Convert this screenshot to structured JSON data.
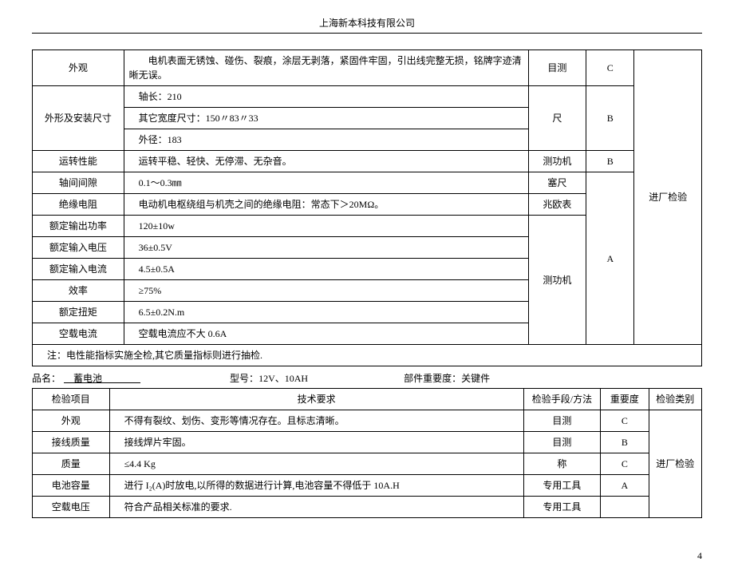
{
  "header": {
    "company": "上海新本科技有限公司"
  },
  "table1": {
    "col5_label": "进厂检验",
    "rows": [
      {
        "item": "外观",
        "req": "  电机表面无锈蚀、碰伤、裂痕，涂层无剥落，紧固件牢固，引出线完整无损，铭牌字迹清晰无误。",
        "method": "目测",
        "grade": "C"
      },
      {
        "item": "外形及安装尺寸",
        "req_a": " 轴长：210",
        "req_b": " 其它宽度尺寸：150〃83〃33",
        "req_c": " 外径：183",
        "method": "尺",
        "grade": "B"
      },
      {
        "item": "运转性能",
        "req": " 运转平稳、轻快、无停滞、无杂音。",
        "method": "测功机",
        "grade": "B"
      },
      {
        "item": "轴间间隙",
        "req": " 0.1～0.3㎜",
        "method": "塞尺",
        "grade_group": "A"
      },
      {
        "item": "绝缘电阻",
        "req": " 电动机电枢绕组与机壳之间的绝缘电阻：常态下＞20MΩ。",
        "method": "兆欧表"
      },
      {
        "item": "额定输出功率",
        "req": " 120±10w",
        "method_group": "测功机"
      },
      {
        "item": "额定输入电压",
        "req": " 36±0.5V"
      },
      {
        "item": "额定输入电流",
        "req": " 4.5±0.5A"
      },
      {
        "item": "效率",
        "req": " ≥75%"
      },
      {
        "item": "额定扭矩",
        "req": " 6.5±0.2N.m"
      },
      {
        "item": "空载电流",
        "req": " 空载电流应不大 0.6A"
      }
    ],
    "note": " 注：电性能指标实施全检,其它质量指标则进行抽检."
  },
  "product": {
    "name_label": "品名：",
    "name_value": " 蓄电池    ",
    "model_label": "型号：",
    "model_value": "12V、10AH",
    "importance_label": "部件重要度：关键件"
  },
  "table2": {
    "header": {
      "c1": "检验项目",
      "c2": "技术要求",
      "c3": "检验手段/方法",
      "c4": "重要度",
      "c5": "检验类别"
    },
    "col5_label": "进厂检验",
    "rows": [
      {
        "item": "外观",
        "req": " 不得有裂纹、划伤、变形等情况存在。且标志清晰。",
        "method": "目测",
        "grade": "C"
      },
      {
        "item": "接线质量",
        "req": " 接线焊片牢固。",
        "method": "目测",
        "grade": "B"
      },
      {
        "item": "质量",
        "req": " ≤4.4 Kg",
        "method": "称",
        "grade": "C"
      },
      {
        "item": "电池容量",
        "req": " 进行 I₂(A)时放电,以所得的数据进行计算,电池容量不得低于 10A.H",
        "method": "专用工具",
        "grade": "A"
      },
      {
        "item": "空载电压",
        "req": " 符合产品相关标准的要求.",
        "method": "专用工具",
        "grade": ""
      }
    ]
  },
  "page": "4"
}
